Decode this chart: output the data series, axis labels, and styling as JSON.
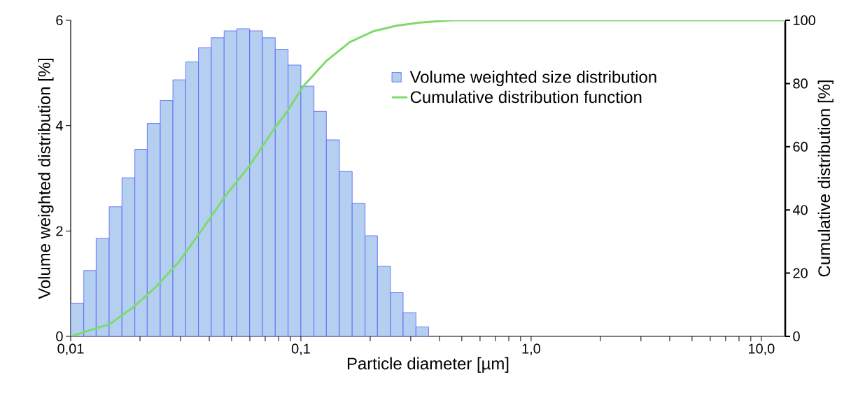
{
  "chart_data": {
    "type": "histogram",
    "xlabel": "Particle diameter [µm]",
    "ylabel": "Volume weighted distribution [%]",
    "y2label": "Cumulative distribution [%]",
    "log": "x",
    "legend": "top right",
    "bins": [
      0.01,
      0.0114,
      0.0129,
      0.0147,
      0.0167,
      0.019,
      0.0215,
      0.0245,
      0.0278,
      0.0316,
      0.0359,
      0.0408,
      0.0464,
      0.0527,
      0.0599,
      0.0681,
      0.0774,
      0.088,
      0.1,
      0.114,
      0.129,
      0.147,
      0.167,
      0.19,
      0.215,
      0.245,
      0.278,
      0.316,
      0.359
    ],
    "xlim": [
      0.01,
      12.7
    ],
    "xticks": [
      {
        "value": 0.01,
        "label": "0,01"
      },
      {
        "value": 0.02,
        "label": null
      },
      {
        "value": 0.03,
        "label": null
      },
      {
        "value": 0.04,
        "label": null
      },
      {
        "value": 0.05,
        "label": null
      },
      {
        "value": 0.06,
        "label": null
      },
      {
        "value": 0.07,
        "label": null
      },
      {
        "value": 0.08,
        "label": null
      },
      {
        "value": 0.09,
        "label": null
      },
      {
        "value": 0.1,
        "label": "0,1"
      },
      {
        "value": 0.2,
        "label": null
      },
      {
        "value": 0.3,
        "label": null
      },
      {
        "value": 0.4,
        "label": null
      },
      {
        "value": 0.5,
        "label": null
      },
      {
        "value": 0.6,
        "label": null
      },
      {
        "value": 0.7,
        "label": null
      },
      {
        "value": 0.8,
        "label": null
      },
      {
        "value": 0.9,
        "label": null
      },
      {
        "value": 1,
        "label": "1,0"
      },
      {
        "value": 2,
        "label": null
      },
      {
        "value": 3,
        "label": null
      },
      {
        "value": 4,
        "label": null
      },
      {
        "value": 5,
        "label": null
      },
      {
        "value": 6,
        "label": null
      },
      {
        "value": 7,
        "label": null
      },
      {
        "value": 8,
        "label": null
      },
      {
        "value": 9,
        "label": null
      },
      {
        "value": 10,
        "label": "10,0"
      }
    ],
    "ylim": [
      0,
      6
    ],
    "yticks": [
      0,
      2,
      4,
      6
    ],
    "y2lim": [
      0,
      100
    ],
    "y2ticks": [
      0,
      20,
      40,
      60,
      80,
      100
    ],
    "series": [
      {
        "name": "Volume weighted size distribution",
        "color": "#b4cff0",
        "values": [
          0.63,
          1.25,
          1.86,
          2.46,
          3.01,
          3.55,
          4.04,
          4.48,
          4.87,
          5.21,
          5.48,
          5.67,
          5.8,
          5.84,
          5.8,
          5.67,
          5.45,
          5.15,
          4.75,
          4.27,
          3.73,
          3.13,
          2.53,
          1.91,
          1.33,
          0.83,
          0.45,
          0.18
        ]
      },
      {
        "name": "Cumulative distribution function",
        "type": "line",
        "axis": "y2",
        "color": "#7ddb6a",
        "x": [
          0.01,
          0.0148,
          0.0186,
          0.0235,
          0.0297,
          0.0375,
          0.0474,
          0.0599,
          0.0756,
          0.0869,
          0.1023,
          0.1293,
          0.1632,
          0.206,
          0.26,
          0.329,
          0.45,
          12.7
        ],
        "values": [
          0,
          3.9,
          9.1,
          15.7,
          23.8,
          34.1,
          44.8,
          54.0,
          65.1,
          71.0,
          79.1,
          87.2,
          93.1,
          96.5,
          98.3,
          99.3,
          100,
          100
        ]
      }
    ]
  }
}
